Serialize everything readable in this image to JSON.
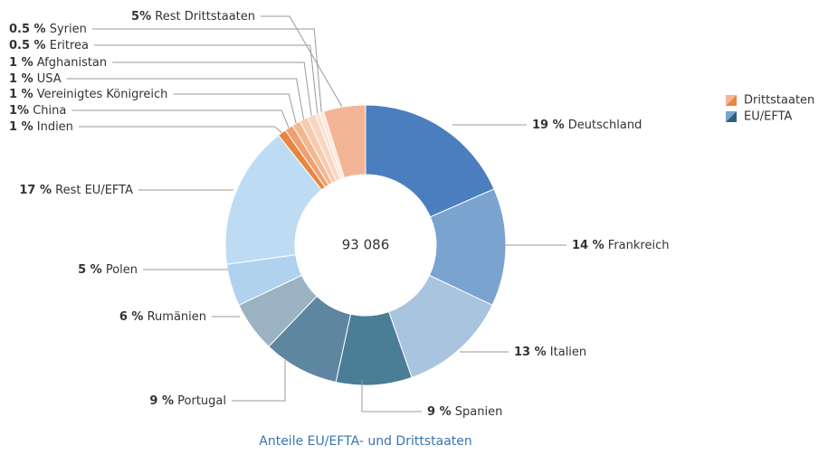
{
  "chart_data": {
    "type": "donut",
    "center_label": "93 086",
    "caption": "Anteile EU/EFTA- und Drittstaaten",
    "categories": [
      "Deutschland",
      "Frankreich",
      "Italien",
      "Spanien",
      "Portugal",
      "Rumänien",
      "Polen",
      "Rest EU/EFTA",
      "Indien",
      "China",
      "Vereinigtes Königreich",
      "USA",
      "Afghanistan",
      "Eritrea",
      "Syrien",
      "Rest Drittstaaten"
    ],
    "values": [
      19,
      14,
      13,
      9,
      9,
      6,
      5,
      17,
      1,
      1,
      1,
      1,
      1,
      0.5,
      0.5,
      5
    ],
    "value_labels": [
      "19 %",
      "14 %",
      "13 %",
      "9 %",
      "9 %",
      "6 %",
      "5 %",
      "17 %",
      "1 %",
      "1%",
      "1 %",
      "1 %",
      "1 %",
      "0.5 %",
      "0.5 %",
      "5%"
    ],
    "colors": [
      "#4a7ebf",
      "#7aa3d0",
      "#a9c4df",
      "#4a7d96",
      "#5f86a0",
      "#9bb2c2",
      "#b0d2ef",
      "#bddcf4",
      "#e8853e",
      "#f0a070",
      "#f4b890",
      "#f7cbb0",
      "#f9d6c0",
      "#fbe0d0",
      "#fbe8dc",
      "#f4b597"
    ],
    "legend": [
      {
        "name": "Drittstaaten",
        "colors": [
          "#f4b597",
          "#e8853e"
        ]
      },
      {
        "name": "EU/EFTA",
        "colors": [
          "#7aa3d0",
          "#2f5f80"
        ]
      }
    ]
  }
}
